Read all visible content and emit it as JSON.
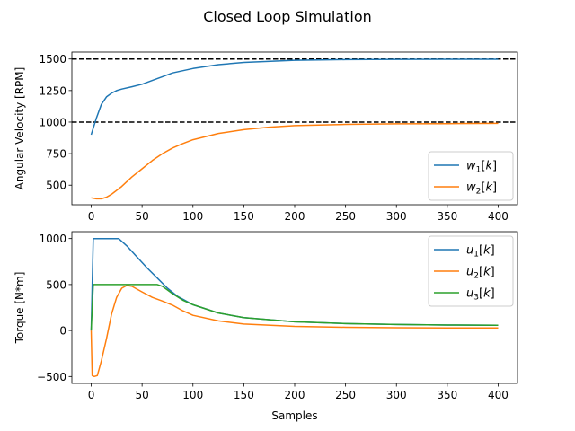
{
  "figure": {
    "title": "Closed Loop Simulation"
  },
  "chart_data": [
    {
      "type": "line",
      "id": "top",
      "xlabel": "",
      "ylabel": "Angular Velocity [RPM]",
      "xlim": [
        -19,
        419
      ],
      "ylim": [
        345,
        1555
      ],
      "xticks": [
        0,
        50,
        100,
        150,
        200,
        250,
        300,
        350,
        400
      ],
      "yticks": [
        500,
        750,
        1000,
        1250,
        1500
      ],
      "grid": false,
      "legend_position": "lower-right",
      "reference_lines": [
        {
          "y": 1500,
          "style": "dashed",
          "color": "#000000"
        },
        {
          "y": 1000,
          "style": "dashed",
          "color": "#000000"
        }
      ],
      "series": [
        {
          "name": "w1[k]",
          "label_base": "w",
          "label_sub": "1",
          "label_tail": "[k]",
          "color": "#1f77b4",
          "x": [
            0,
            5,
            10,
            15,
            20,
            25,
            30,
            40,
            50,
            60,
            70,
            80,
            100,
            125,
            150,
            200,
            250,
            300,
            350,
            400
          ],
          "y": [
            900,
            1030,
            1140,
            1200,
            1230,
            1250,
            1262,
            1280,
            1300,
            1330,
            1360,
            1390,
            1425,
            1455,
            1473,
            1490,
            1495,
            1497,
            1498,
            1498
          ]
        },
        {
          "name": "w2[k]",
          "label_base": "w",
          "label_sub": "2",
          "label_tail": "[k]",
          "color": "#ff7f0e",
          "x": [
            0,
            5,
            10,
            15,
            20,
            30,
            40,
            50,
            60,
            70,
            80,
            90,
            100,
            125,
            150,
            175,
            200,
            250,
            300,
            350,
            400
          ],
          "y": [
            400,
            392,
            392,
            405,
            428,
            490,
            565,
            630,
            695,
            750,
            795,
            830,
            860,
            910,
            940,
            960,
            972,
            982,
            986,
            988,
            990
          ]
        }
      ]
    },
    {
      "type": "line",
      "id": "bottom",
      "xlabel": "Samples",
      "ylabel": "Torque [N*m]",
      "xlim": [
        -19,
        419
      ],
      "ylim": [
        -575,
        1075
      ],
      "xticks": [
        0,
        50,
        100,
        150,
        200,
        250,
        300,
        350,
        400
      ],
      "yticks": [
        -500,
        0,
        500,
        1000
      ],
      "grid": false,
      "legend_position": "upper-right",
      "series": [
        {
          "name": "u1[k]",
          "label_base": "u",
          "label_sub": "1",
          "label_tail": "[k]",
          "color": "#1f77b4",
          "x": [
            0,
            2,
            5,
            10,
            20,
            27,
            35,
            45,
            55,
            65,
            75,
            85,
            100,
            125,
            150,
            200,
            250,
            300,
            350,
            400
          ],
          "y": [
            0,
            1000,
            1000,
            1000,
            1000,
            1000,
            920,
            800,
            680,
            570,
            460,
            370,
            280,
            190,
            140,
            95,
            75,
            65,
            60,
            58
          ]
        },
        {
          "name": "u2[k]",
          "label_base": "u",
          "label_sub": "2",
          "label_tail": "[k]",
          "color": "#ff7f0e",
          "x": [
            0,
            1,
            3,
            6,
            10,
            15,
            20,
            25,
            30,
            35,
            40,
            50,
            60,
            70,
            80,
            90,
            100,
            125,
            150,
            200,
            250,
            300,
            350,
            400
          ],
          "y": [
            0,
            -490,
            -500,
            -490,
            -330,
            -90,
            180,
            360,
            460,
            490,
            480,
            420,
            360,
            320,
            275,
            215,
            165,
            105,
            70,
            45,
            35,
            30,
            28,
            27
          ]
        },
        {
          "name": "u3[k]",
          "label_base": "u",
          "label_sub": "3",
          "label_tail": "[k]",
          "color": "#2ca02c",
          "x": [
            0,
            2,
            10,
            30,
            50,
            65,
            70,
            80,
            90,
            100,
            125,
            150,
            200,
            250,
            300,
            350,
            400
          ],
          "y": [
            0,
            500,
            500,
            500,
            500,
            500,
            480,
            400,
            330,
            280,
            190,
            140,
            95,
            75,
            65,
            60,
            58
          ]
        }
      ]
    }
  ]
}
